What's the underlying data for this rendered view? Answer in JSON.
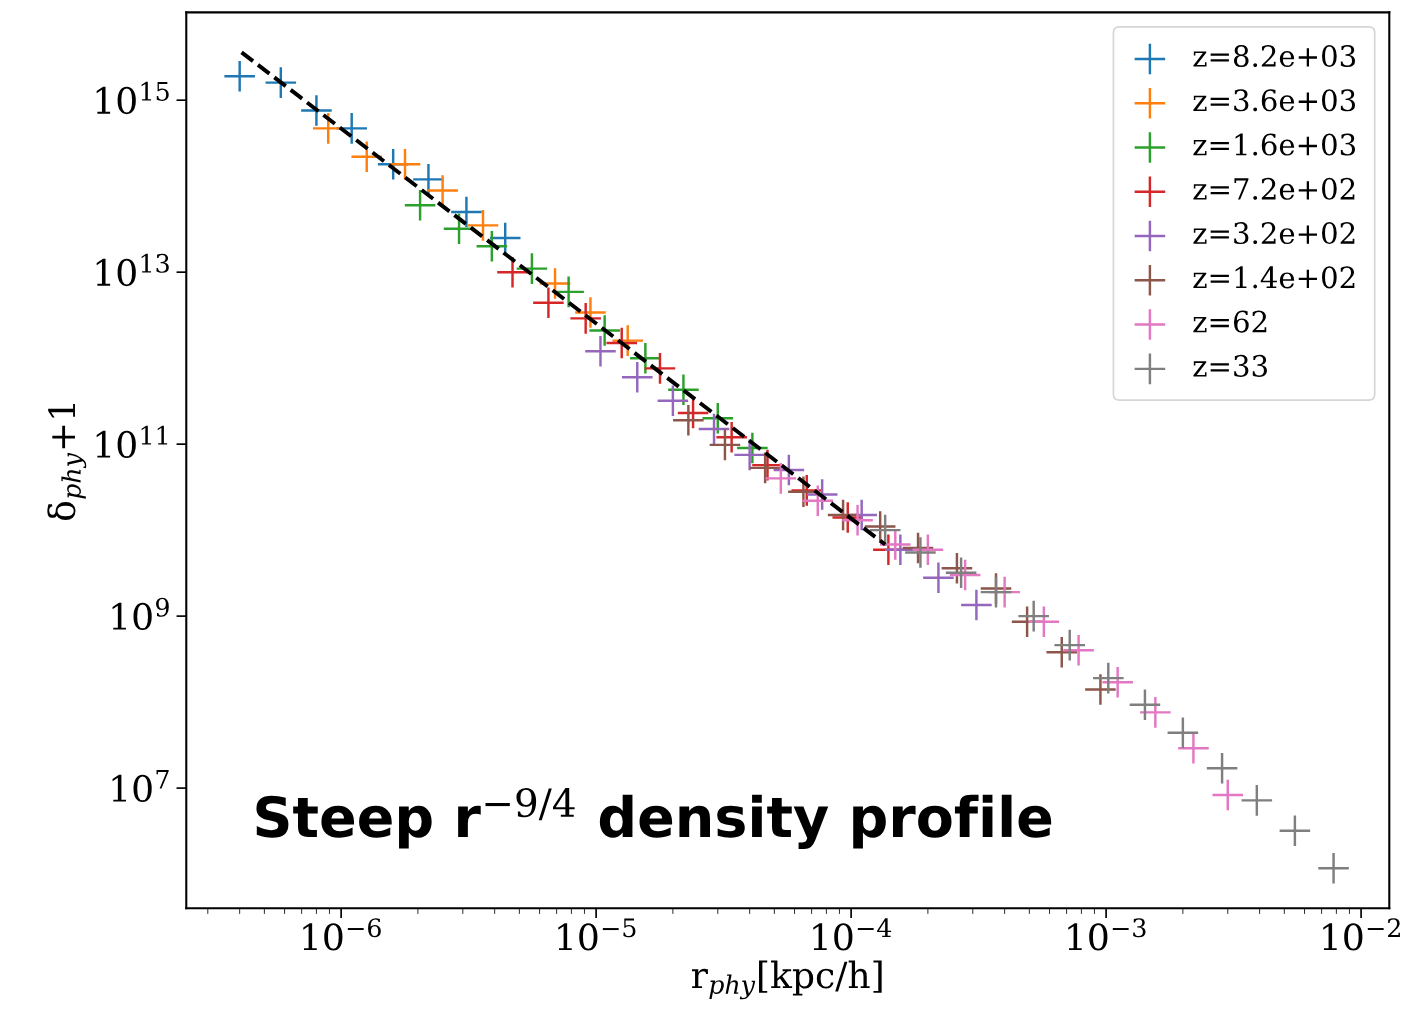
{
  "chart_data": {
    "type": "scatter",
    "xlabel": "r$_{phy}$[kpc/h]",
    "ylabel": "δ$_{phy}$+1",
    "log": "xy",
    "marker": "cross",
    "legend": "top right",
    "grid": false,
    "xlim": [
      2.47e-07,
      0.0129
    ],
    "ylim": [
      400000.0,
      1.05e+16
    ],
    "xticks": [
      {
        "value": 1e-06,
        "label": "10$^{−6}$"
      },
      {
        "value": 1e-05,
        "label": "10$^{−5}$"
      },
      {
        "value": 0.0001,
        "label": "10$^{−4}$"
      },
      {
        "value": 0.001,
        "label": "10$^{−3}$"
      },
      {
        "value": 0.01,
        "label": "10$^{−2}$"
      }
    ],
    "yticks": [
      {
        "value": 10000000.0,
        "label": "10$^{7}$"
      },
      {
        "value": 1000000000.0,
        "label": "10$^{9}$"
      },
      {
        "value": 100000000000.0,
        "label": "10$^{11}$"
      },
      {
        "value": 10000000000000.0,
        "label": "10$^{13}$"
      },
      {
        "value": 1000000000000000.0,
        "label": "10$^{15}$"
      }
    ],
    "annotations": [
      "Steep r$^{−9/4}$ density profile"
    ],
    "series": [
      {
        "name": "z=8.2e+03",
        "color": "#1f77b4",
        "x": [
          4e-07,
          5.8e-07,
          8e-07,
          1.1e-06,
          1.6e-06,
          2.2e-06,
          3.1e-06,
          4.4e-06
        ],
        "values": [
          1900000000000000.0,
          1600000000000000.0,
          760000000000000.0,
          470000000000000.0,
          180000000000000.0,
          120000000000000.0,
          50000000000000.0,
          25000000000000.0
        ]
      },
      {
        "name": "z=3.6e+03",
        "color": "#ff7f0e",
        "x": [
          8.9e-07,
          1.26e-06,
          1.78e-06,
          2.5e-06,
          3.6e-06,
          6.9e-06,
          9.5e-06,
          1.33e-05
        ],
        "values": [
          470000000000000.0,
          220000000000000.0,
          180000000000000.0,
          89000000000000.0,
          35000000000000.0,
          7400000000000.0,
          3400000000000.0,
          1600000000000.0
        ]
      },
      {
        "name": "z=1.6e+03",
        "color": "#2ca02c",
        "x": [
          2.04e-06,
          2.9e-06,
          3.9e-06,
          5.6e-06,
          7.8e-06,
          1.08e-05,
          1.56e-05,
          2.2e-05,
          3e-05,
          4.1e-05
        ],
        "values": [
          60000000000000.0,
          32000000000000.0,
          20000000000000.0,
          11000000000000.0,
          5900000000000.0,
          2100000000000.0,
          1000000000000.0,
          430000000000.0,
          200000000000.0,
          90000000000.0
        ]
      },
      {
        "name": "z=7.2e+02",
        "color": "#d62728",
        "x": [
          4.7e-06,
          6.5e-06,
          9.1e-06,
          1.26e-05,
          1.78e-05,
          2.4e-05,
          3.4e-05,
          4.7e-05,
          6.7e-05,
          9.7e-05,
          0.00014
        ],
        "values": [
          10000000000000.0,
          4400000000000.0,
          2900000000000.0,
          1500000000000.0,
          760000000000.0,
          230000000000.0,
          120000000000.0,
          57000000000.0,
          29000000000.0,
          14000000000.0,
          5900000000.0
        ]
      },
      {
        "name": "z=3.2e+02",
        "color": "#9467bd",
        "x": [
          1.04e-05,
          1.45e-05,
          2e-05,
          2.9e-05,
          4e-05,
          5.7e-05,
          7.7e-05,
          0.00011,
          0.000156,
          0.00022,
          0.00031
        ],
        "values": [
          1200000000000.0,
          600000000000.0,
          320000000000.0,
          150000000000.0,
          75000000000.0,
          50000000000.0,
          26000000000.0,
          15000000000.0,
          5900000000.0,
          2800000000.0,
          1350000000.0
        ]
      },
      {
        "name": "z=1.4e+02",
        "color": "#8c564b",
        "x": [
          2.3e-05,
          3.2e-05,
          4.6e-05,
          6.5e-05,
          9.3e-05,
          0.00013,
          0.000183,
          0.00026,
          0.00037,
          0.00049,
          0.00067,
          0.00095
        ],
        "values": [
          190000000000.0,
          98000000000.0,
          53000000000.0,
          28000000000.0,
          15000000000.0,
          11000000000.0,
          6200000000.0,
          3600000000.0,
          2100000000.0,
          860000000.0,
          380000000.0,
          140000000.0
        ]
      },
      {
        "name": "z=62",
        "color": "#e377c2",
        "x": [
          5.3e-05,
          7.4e-05,
          0.000106,
          0.000149,
          0.0002,
          0.00028,
          0.0004,
          0.00057,
          0.00078,
          0.00111,
          0.00156,
          0.0022,
          0.003
        ],
        "values": [
          40000000000.0,
          22000000000.0,
          13000000000.0,
          6800000000.0,
          5900000000.0,
          3000000000.0,
          1900000000.0,
          860000000.0,
          400000000.0,
          170000000.0,
          76000000.0,
          29000000.0,
          8300000.0
        ]
      },
      {
        "name": "z=33",
        "color": "#7f7f7f",
        "x": [
          0.000136,
          0.000187,
          0.00027,
          0.00037,
          0.00052,
          0.00072,
          0.00102,
          0.00142,
          0.002,
          0.00285,
          0.0039,
          0.0055,
          0.0078
        ],
        "values": [
          10000000000.0,
          5500000000.0,
          3200000000.0,
          1900000000.0,
          1000000000.0,
          460000000.0,
          190000000.0,
          93000000.0,
          44000000.0,
          17000000.0,
          7200000.0,
          3200000.0,
          1170000.0
        ]
      },
      {
        "type": "line",
        "color": "#000000",
        "line_style": "dashed",
        "marker": "none",
        "x": [
          4.07e-07,
          0.000136
        ],
        "values": [
          3600000000000000.0,
          6800000000.0
        ]
      }
    ]
  }
}
